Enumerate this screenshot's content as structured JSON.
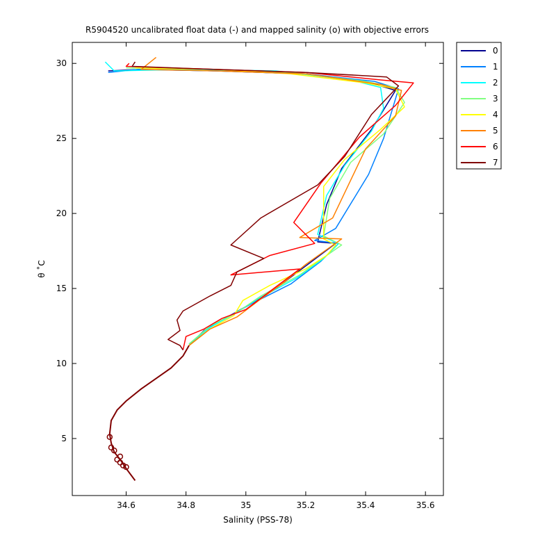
{
  "chart_data": {
    "type": "line",
    "title": "R5904520 uncalibrated float data (-) and mapped salinity (o) with objective errors",
    "xlabel": "Salinity (PSS-78)",
    "ylabel": "θ ˚C",
    "xlim": [
      34.42,
      35.66
    ],
    "ylim": [
      1.2,
      31.4
    ],
    "xticks": [
      34.6,
      34.8,
      35.0,
      35.2,
      35.4,
      35.6
    ],
    "xtick_labels": [
      "34.6",
      "34.8",
      "35",
      "35.2",
      "35.4",
      "35.6"
    ],
    "yticks": [
      5,
      10,
      15,
      20,
      25,
      30
    ],
    "ytick_labels": [
      "5",
      "10",
      "15",
      "20",
      "25",
      "30"
    ],
    "grid": false,
    "legend_position": "outside-top-right",
    "common_deep": [
      [
        34.63,
        2.2
      ],
      [
        34.6,
        3.0
      ],
      [
        34.58,
        3.6
      ],
      [
        34.56,
        4.1
      ],
      [
        34.55,
        4.7
      ],
      [
        34.545,
        5.3
      ],
      [
        34.55,
        6.2
      ],
      [
        34.57,
        6.9
      ],
      [
        34.6,
        7.5
      ],
      [
        34.65,
        8.3
      ],
      [
        34.7,
        9.0
      ],
      [
        34.75,
        9.7
      ],
      [
        34.79,
        10.5
      ],
      [
        34.81,
        11.2
      ]
    ],
    "mapped_points": [
      [
        34.56,
        4.2
      ],
      [
        34.58,
        3.8
      ],
      [
        34.57,
        3.6
      ],
      [
        34.58,
        3.4
      ],
      [
        34.59,
        3.2
      ],
      [
        34.545,
        5.1
      ],
      [
        34.55,
        4.4
      ],
      [
        34.6,
        3.1
      ]
    ],
    "series": [
      {
        "name": "0",
        "color": "#00008f",
        "values": [
          [
            34.81,
            11.2
          ],
          [
            34.86,
            12.2
          ],
          [
            34.93,
            13.0
          ],
          [
            35.0,
            13.8
          ],
          [
            35.1,
            15.0
          ],
          [
            35.2,
            16.5
          ],
          [
            35.3,
            18.0
          ],
          [
            35.24,
            18.1
          ],
          [
            35.27,
            20.6
          ],
          [
            35.32,
            23.0
          ],
          [
            35.42,
            25.6
          ],
          [
            35.5,
            28.2
          ],
          [
            35.4,
            28.8
          ],
          [
            35.2,
            29.3
          ],
          [
            34.9,
            29.5
          ],
          [
            34.65,
            29.6
          ],
          [
            34.54,
            29.5
          ]
        ]
      },
      {
        "name": "1",
        "color": "#0080ff",
        "values": [
          [
            34.81,
            11.2
          ],
          [
            34.87,
            12.3
          ],
          [
            34.94,
            13.1
          ],
          [
            35.02,
            14.0
          ],
          [
            35.15,
            15.3
          ],
          [
            35.25,
            16.8
          ],
          [
            35.31,
            18.0
          ],
          [
            35.23,
            18.2
          ],
          [
            35.3,
            19.0
          ],
          [
            35.41,
            22.6
          ],
          [
            35.46,
            25.0
          ],
          [
            35.51,
            28.3
          ],
          [
            35.43,
            28.8
          ],
          [
            35.2,
            29.3
          ],
          [
            34.9,
            29.5
          ],
          [
            34.64,
            29.6
          ],
          [
            34.54,
            29.4
          ]
        ]
      },
      {
        "name": "2",
        "color": "#00ffff",
        "values": [
          [
            34.81,
            11.3
          ],
          [
            34.88,
            12.4
          ],
          [
            34.96,
            13.3
          ],
          [
            35.04,
            14.3
          ],
          [
            35.17,
            15.7
          ],
          [
            35.26,
            17.0
          ],
          [
            35.31,
            18.0
          ],
          [
            35.24,
            18.6
          ],
          [
            35.27,
            21.2
          ],
          [
            35.33,
            23.2
          ],
          [
            35.42,
            25.5
          ],
          [
            35.46,
            27.0
          ],
          [
            35.45,
            28.4
          ],
          [
            35.35,
            28.9
          ],
          [
            35.1,
            29.5
          ],
          [
            34.8,
            29.6
          ],
          [
            34.56,
            29.5
          ],
          [
            34.53,
            30.1
          ]
        ]
      },
      {
        "name": "3",
        "color": "#80ff80",
        "values": [
          [
            34.81,
            11.3
          ],
          [
            34.88,
            12.5
          ],
          [
            34.97,
            13.4
          ],
          [
            35.05,
            14.5
          ],
          [
            35.18,
            15.9
          ],
          [
            35.27,
            17.2
          ],
          [
            35.32,
            17.9
          ],
          [
            35.26,
            18.5
          ],
          [
            35.28,
            21.0
          ],
          [
            35.35,
            23.4
          ],
          [
            35.46,
            25.3
          ],
          [
            35.53,
            27.4
          ],
          [
            35.5,
            28.4
          ],
          [
            35.4,
            28.8
          ],
          [
            35.15,
            29.4
          ],
          [
            34.9,
            29.6
          ],
          [
            34.6,
            29.7
          ]
        ]
      },
      {
        "name": "4",
        "color": "#ffff00",
        "values": [
          [
            34.81,
            11.2
          ],
          [
            34.88,
            12.3
          ],
          [
            34.96,
            13.2
          ],
          [
            34.99,
            14.2
          ],
          [
            35.08,
            15.2
          ],
          [
            35.2,
            16.3
          ],
          [
            35.27,
            17.2
          ],
          [
            35.3,
            17.9
          ],
          [
            35.26,
            18.3
          ],
          [
            35.26,
            21.8
          ],
          [
            35.33,
            23.6
          ],
          [
            35.45,
            25.6
          ],
          [
            35.53,
            27.1
          ],
          [
            35.5,
            28.3
          ],
          [
            35.4,
            28.7
          ],
          [
            35.15,
            29.3
          ],
          [
            34.9,
            29.6
          ],
          [
            34.63,
            29.7
          ]
        ]
      },
      {
        "name": "5",
        "color": "#ff8000",
        "values": [
          [
            34.81,
            11.2
          ],
          [
            34.88,
            12.3
          ],
          [
            34.97,
            13.1
          ],
          [
            35.05,
            14.3
          ],
          [
            35.12,
            15.3
          ],
          [
            35.2,
            16.6
          ],
          [
            35.32,
            18.3
          ],
          [
            35.18,
            18.4
          ],
          [
            35.29,
            19.7
          ],
          [
            35.4,
            24.3
          ],
          [
            35.5,
            26.5
          ],
          [
            35.52,
            28.2
          ],
          [
            35.45,
            28.6
          ],
          [
            35.2,
            29.3
          ],
          [
            34.9,
            29.5
          ],
          [
            34.65,
            29.6
          ],
          [
            34.7,
            30.4
          ]
        ]
      },
      {
        "name": "6",
        "color": "#ff0000",
        "values": [
          [
            34.79,
            10.9
          ],
          [
            34.8,
            11.8
          ],
          [
            34.86,
            12.3
          ],
          [
            34.92,
            13.0
          ],
          [
            35.0,
            13.6
          ],
          [
            35.08,
            14.8
          ],
          [
            35.18,
            16.3
          ],
          [
            34.95,
            15.9
          ],
          [
            35.08,
            17.2
          ],
          [
            35.23,
            18.0
          ],
          [
            35.16,
            19.4
          ],
          [
            35.25,
            22.0
          ],
          [
            35.38,
            25.1
          ],
          [
            35.5,
            27.2
          ],
          [
            35.56,
            28.7
          ],
          [
            35.45,
            28.9
          ],
          [
            35.2,
            29.4
          ],
          [
            34.9,
            29.6
          ],
          [
            34.6,
            29.8
          ],
          [
            34.61,
            30.0
          ]
        ]
      },
      {
        "name": "7",
        "color": "#800000",
        "values": [
          [
            34.79,
            10.9
          ],
          [
            34.78,
            11.2
          ],
          [
            34.74,
            11.6
          ],
          [
            34.78,
            12.2
          ],
          [
            34.77,
            12.9
          ],
          [
            34.79,
            13.5
          ],
          [
            34.88,
            14.5
          ],
          [
            34.95,
            15.2
          ],
          [
            34.97,
            16.1
          ],
          [
            35.06,
            17.0
          ],
          [
            34.95,
            17.9
          ],
          [
            35.05,
            19.7
          ],
          [
            35.24,
            21.9
          ],
          [
            35.33,
            23.8
          ],
          [
            35.42,
            26.6
          ],
          [
            35.51,
            28.5
          ],
          [
            35.47,
            29.1
          ],
          [
            35.2,
            29.4
          ],
          [
            34.9,
            29.6
          ],
          [
            34.62,
            29.8
          ],
          [
            34.63,
            30.1
          ]
        ]
      }
    ]
  }
}
